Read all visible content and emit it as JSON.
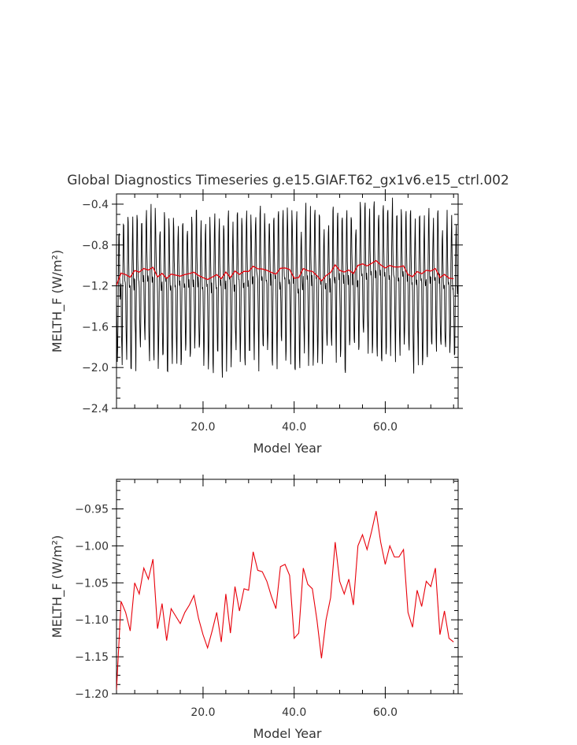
{
  "title": "Global Diagnostics Timeseries g.e15.GIAF.T62_gx1v6.e15_ctrl.002",
  "colors": {
    "monthly": "#000000",
    "annual": "#e8000a"
  },
  "chart_data": [
    {
      "type": "line",
      "xlabel": "Model Year",
      "ylabel": "MELTH_F (W/m²)",
      "xlim": [
        1,
        76
      ],
      "ylim": [
        -2.4,
        -0.3
      ],
      "xticks": [
        20,
        40,
        60
      ],
      "xtick_labels": [
        "20.0",
        "40.0",
        "60.0"
      ],
      "yticks": [
        -2.4,
        -2.0,
        -1.6,
        -1.2,
        -0.8,
        -0.4
      ],
      "ytick_labels": [
        "−2.4",
        "−2.0",
        "−1.6",
        "−1.2",
        "−0.8",
        "−0.4"
      ],
      "series": [
        {
          "style": "monthly",
          "color": "#000000",
          "seasonal_cycle": [
            -1.2,
            -1.55,
            -1.85,
            -1.9,
            -1.45,
            -0.95,
            -0.6,
            -0.55,
            -0.9,
            -1.1,
            -1.2,
            -1.15
          ],
          "years": [
            1,
            76
          ]
        },
        {
          "style": "annual",
          "color": "#e8000a",
          "x": [
            1,
            2,
            3,
            4,
            5,
            6,
            7,
            8,
            9,
            10,
            11,
            12,
            13,
            14,
            15,
            16,
            17,
            18,
            19,
            20,
            21,
            22,
            23,
            24,
            25,
            26,
            27,
            28,
            29,
            30,
            31,
            32,
            33,
            34,
            35,
            36,
            37,
            38,
            39,
            40,
            41,
            42,
            43,
            44,
            45,
            46,
            47,
            48,
            49,
            50,
            51,
            52,
            53,
            54,
            55,
            56,
            57,
            58,
            59,
            60,
            61,
            62,
            63,
            64,
            65,
            66,
            67,
            68,
            69,
            70,
            71,
            72,
            73,
            74,
            75
          ],
          "y": [
            -1.195,
            -1.075,
            -1.09,
            -1.115,
            -1.05,
            -1.065,
            -1.03,
            -1.045,
            -1.018,
            -1.112,
            -1.078,
            -1.128,
            -1.085,
            -1.095,
            -1.105,
            -1.09,
            -1.08,
            -1.067,
            -1.098,
            -1.12,
            -1.138,
            -1.115,
            -1.09,
            -1.13,
            -1.065,
            -1.118,
            -1.055,
            -1.088,
            -1.058,
            -1.06,
            -1.008,
            -1.033,
            -1.035,
            -1.048,
            -1.068,
            -1.085,
            -1.028,
            -1.025,
            -1.04,
            -1.125,
            -1.118,
            -1.03,
            -1.052,
            -1.058,
            -1.1,
            -1.152,
            -1.1,
            -1.07,
            -0.995,
            -1.048,
            -1.065,
            -1.045,
            -1.08,
            -1.0,
            -0.985,
            -1.005,
            -0.98,
            -0.953,
            -0.995,
            -1.025,
            -1.0,
            -1.015,
            -1.015,
            -1.005,
            -1.09,
            -1.11,
            -1.06,
            -1.082,
            -1.048,
            -1.055,
            -1.03,
            -1.12,
            -1.088,
            -1.125,
            -1.13
          ]
        }
      ]
    },
    {
      "type": "line",
      "xlabel": "Model Year",
      "ylabel": "MELTH_F (W/m²)",
      "xlim": [
        1,
        76
      ],
      "ylim": [
        -1.2,
        -0.91
      ],
      "xticks": [
        20,
        40,
        60
      ],
      "xtick_labels": [
        "20.0",
        "40.0",
        "60.0"
      ],
      "yticks": [
        -1.2,
        -1.15,
        -1.1,
        -1.05,
        -1.0,
        -0.95
      ],
      "ytick_labels": [
        "−1.20",
        "−1.15",
        "−1.10",
        "−1.05",
        "−1.00",
        "−0.95"
      ],
      "series": [
        {
          "style": "annual",
          "color": "#e8000a",
          "x": [
            1,
            2,
            3,
            4,
            5,
            6,
            7,
            8,
            9,
            10,
            11,
            12,
            13,
            14,
            15,
            16,
            17,
            18,
            19,
            20,
            21,
            22,
            23,
            24,
            25,
            26,
            27,
            28,
            29,
            30,
            31,
            32,
            33,
            34,
            35,
            36,
            37,
            38,
            39,
            40,
            41,
            42,
            43,
            44,
            45,
            46,
            47,
            48,
            49,
            50,
            51,
            52,
            53,
            54,
            55,
            56,
            57,
            58,
            59,
            60,
            61,
            62,
            63,
            64,
            65,
            66,
            67,
            68,
            69,
            70,
            71,
            72,
            73,
            74,
            75
          ],
          "y": [
            -1.195,
            -1.075,
            -1.09,
            -1.115,
            -1.05,
            -1.065,
            -1.03,
            -1.045,
            -1.018,
            -1.112,
            -1.078,
            -1.128,
            -1.085,
            -1.095,
            -1.105,
            -1.09,
            -1.08,
            -1.067,
            -1.098,
            -1.12,
            -1.138,
            -1.115,
            -1.09,
            -1.13,
            -1.065,
            -1.118,
            -1.055,
            -1.088,
            -1.058,
            -1.06,
            -1.008,
            -1.033,
            -1.035,
            -1.048,
            -1.068,
            -1.085,
            -1.028,
            -1.025,
            -1.04,
            -1.125,
            -1.118,
            -1.03,
            -1.052,
            -1.058,
            -1.1,
            -1.152,
            -1.1,
            -1.07,
            -0.995,
            -1.048,
            -1.065,
            -1.045,
            -1.08,
            -1.0,
            -0.985,
            -1.005,
            -0.98,
            -0.953,
            -0.995,
            -1.025,
            -1.0,
            -1.015,
            -1.015,
            -1.005,
            -1.09,
            -1.11,
            -1.06,
            -1.082,
            -1.048,
            -1.055,
            -1.03,
            -1.12,
            -1.088,
            -1.125,
            -1.13
          ]
        }
      ]
    }
  ]
}
